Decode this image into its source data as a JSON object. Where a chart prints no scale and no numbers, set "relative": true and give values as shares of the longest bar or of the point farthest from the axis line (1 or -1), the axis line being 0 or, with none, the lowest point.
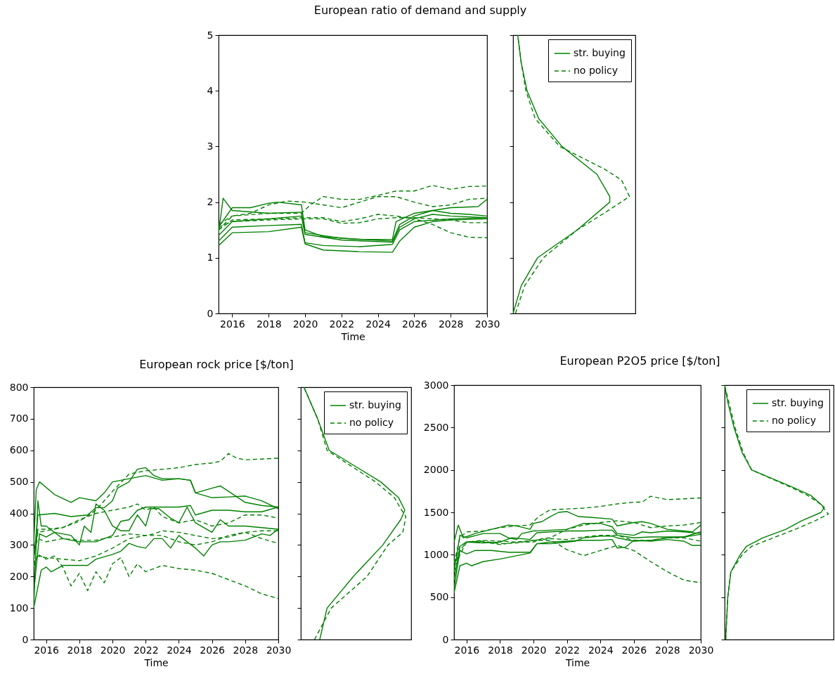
{
  "chart_data": [
    {
      "type": "line",
      "title": "European ratio of demand and supply",
      "xlabel": "Time",
      "xlim": [
        2015.25,
        2030
      ],
      "xticks": [
        2016,
        2018,
        2020,
        2022,
        2024,
        2026,
        2028,
        2030
      ],
      "ylim": [
        0,
        5
      ],
      "yticks": [
        0,
        1,
        2,
        3,
        4,
        5
      ],
      "series": [
        {
          "color": "#008000",
          "line_style": "solid",
          "x": [
            2015.25,
            2016,
            2017,
            2018,
            2018.5,
            2019.8,
            2020,
            2021,
            2023,
            2024.8,
            2025,
            2026,
            2027,
            2028,
            2029.5,
            2030
          ],
          "values": [
            1.55,
            1.9,
            1.9,
            1.98,
            2.0,
            1.95,
            1.5,
            1.38,
            1.33,
            1.33,
            1.65,
            1.8,
            1.85,
            1.9,
            1.92,
            2.05
          ]
        },
        {
          "color": "#008000",
          "line_style": "solid",
          "x": [
            2015.25,
            2015.5,
            2016,
            2018,
            2019.8,
            2020,
            2022,
            2024.8,
            2025.2,
            2026,
            2027,
            2028,
            2029,
            2030
          ],
          "values": [
            1.45,
            2.07,
            1.85,
            1.8,
            1.82,
            1.45,
            1.35,
            1.3,
            1.6,
            1.75,
            1.85,
            1.8,
            1.78,
            1.75
          ]
        },
        {
          "color": "#008000",
          "line_style": "solid",
          "x": [
            2015.25,
            2016,
            2018,
            2019.8,
            2020,
            2022,
            2024.8,
            2025.2,
            2026,
            2027,
            2028,
            2030
          ],
          "values": [
            1.4,
            1.65,
            1.7,
            1.75,
            1.42,
            1.32,
            1.28,
            1.55,
            1.7,
            1.78,
            1.75,
            1.72
          ]
        },
        {
          "color": "#008000",
          "line_style": "solid",
          "x": [
            2015.25,
            2016,
            2018,
            2019.8,
            2020,
            2021,
            2023,
            2024.8,
            2025.2,
            2026,
            2028,
            2030
          ],
          "values": [
            1.3,
            1.55,
            1.58,
            1.6,
            1.27,
            1.22,
            1.2,
            1.24,
            1.5,
            1.65,
            1.7,
            1.72
          ]
        },
        {
          "color": "#008000",
          "line_style": "solid",
          "x": [
            2015.25,
            2016,
            2018,
            2019.8,
            2020,
            2021,
            2023,
            2024.8,
            2025.2,
            2026,
            2027,
            2028,
            2030
          ],
          "values": [
            1.22,
            1.45,
            1.47,
            1.55,
            1.25,
            1.14,
            1.11,
            1.1,
            1.3,
            1.55,
            1.65,
            1.68,
            1.7
          ]
        },
        {
          "color": "#008000",
          "line_style": "dashed",
          "x": [
            2015.25,
            2016,
            2017,
            2018,
            2019,
            2020,
            2021,
            2022,
            2023,
            2024,
            2025,
            2026,
            2027,
            2028,
            2029,
            2030
          ],
          "values": [
            1.5,
            1.75,
            1.8,
            1.95,
            2.02,
            2.0,
            1.95,
            1.9,
            2.0,
            2.1,
            2.1,
            2.0,
            1.92,
            1.95,
            2.05,
            2.07
          ]
        },
        {
          "color": "#008000",
          "line_style": "dashed",
          "x": [
            2015.25,
            2016,
            2018,
            2019.8,
            2020.3,
            2021,
            2022,
            2023,
            2024,
            2025,
            2026,
            2027,
            2028,
            2029,
            2030
          ],
          "values": [
            1.6,
            1.75,
            1.8,
            1.8,
            1.95,
            2.1,
            2.05,
            2.05,
            2.12,
            2.2,
            2.2,
            2.3,
            2.23,
            2.28,
            2.29
          ]
        },
        {
          "color": "#008000",
          "line_style": "dashed",
          "x": [
            2015.25,
            2016,
            2018,
            2020,
            2021,
            2022,
            2023,
            2024,
            2025,
            2026,
            2027,
            2028,
            2029,
            2030
          ],
          "values": [
            1.5,
            1.68,
            1.7,
            1.72,
            1.72,
            1.65,
            1.7,
            1.78,
            1.75,
            1.7,
            1.6,
            1.45,
            1.37,
            1.36
          ]
        },
        {
          "color": "#008000",
          "line_style": "dashed",
          "x": [
            2015.25,
            2016,
            2018,
            2020,
            2021,
            2022,
            2023,
            2024,
            2025,
            2026,
            2027,
            2028,
            2029,
            2030
          ],
          "values": [
            1.55,
            1.65,
            1.68,
            1.7,
            1.7,
            1.62,
            1.63,
            1.7,
            1.72,
            1.72,
            1.7,
            1.68,
            1.63,
            1.63
          ]
        }
      ]
    },
    {
      "type": "line",
      "orientation": "horizontal",
      "relative": true,
      "ylim": [
        0,
        5
      ],
      "yticks": [
        0,
        1,
        2,
        3,
        4,
        5
      ],
      "tick_labels": false,
      "legend": "top right",
      "series": [
        {
          "name": "str. buying",
          "color": "#008000",
          "line_style": "solid",
          "x": [
            0,
            0.5,
            1,
            1.5,
            2,
            2.1,
            2.5,
            3,
            3.5,
            4,
            4.5,
            5
          ],
          "values": [
            0,
            0.07,
            0.21,
            0.55,
            0.83,
            0.83,
            0.72,
            0.42,
            0.22,
            0.12,
            0.07,
            0.04
          ]
        },
        {
          "name": "no policy",
          "color": "#008000",
          "line_style": "dashed",
          "x": [
            0,
            0.5,
            1,
            1.5,
            1.8,
            2.1,
            2.4,
            2.6,
            3,
            3.5,
            4,
            4.5,
            5
          ],
          "values": [
            0.02,
            0.1,
            0.26,
            0.55,
            0.78,
            1,
            0.93,
            0.78,
            0.4,
            0.19,
            0.11,
            0.07,
            0.04
          ]
        }
      ]
    },
    {
      "type": "line",
      "title": "European rock price [$/ton]",
      "xlabel": "Time",
      "xlim": [
        2015.25,
        2030
      ],
      "xticks": [
        2016,
        2018,
        2020,
        2022,
        2024,
        2026,
        2028,
        2030
      ],
      "ylim": [
        0,
        800
      ],
      "yticks": [
        0,
        100,
        200,
        300,
        400,
        500,
        600,
        700,
        800
      ],
      "series": [
        {
          "color": "#008000",
          "line_style": "solid",
          "x": [
            2015.25,
            2015.4,
            2015.6,
            2016.5,
            2017.5,
            2018,
            2019,
            2019.5,
            2020,
            2021,
            2022,
            2023,
            2024,
            2024.7,
            2025,
            2026,
            2026.5,
            2027,
            2028,
            2029,
            2030
          ],
          "values": [
            300,
            475,
            500,
            460,
            435,
            450,
            440,
            465,
            500,
            510,
            520,
            505,
            510,
            505,
            465,
            480,
            487,
            470,
            435,
            425,
            420
          ]
        },
        {
          "color": "#008000",
          "line_style": "solid",
          "x": [
            2015.25,
            2015.5,
            2016.5,
            2017.5,
            2018.5,
            2019,
            2019.5,
            2020,
            2020.3,
            2021,
            2021.5,
            2022,
            2022.5,
            2023,
            2024,
            2024.7,
            2025,
            2026,
            2027,
            2028,
            2029,
            2030
          ],
          "values": [
            250,
            395,
            400,
            390,
            395,
            418,
            418,
            440,
            480,
            500,
            540,
            545,
            520,
            510,
            510,
            505,
            465,
            450,
            452,
            455,
            440,
            415
          ]
        },
        {
          "color": "#008000",
          "line_style": "solid",
          "x": [
            2015.25,
            2015.5,
            2015.7,
            2016,
            2017,
            2018,
            2019,
            2020,
            2020.5,
            2021,
            2021.5,
            2022,
            2023,
            2024,
            2024.7,
            2025,
            2026,
            2027,
            2028,
            2029,
            2030
          ],
          "values": [
            100,
            440,
            360,
            360,
            320,
            310,
            310,
            330,
            375,
            380,
            410,
            420,
            420,
            420,
            425,
            395,
            410,
            410,
            405,
            405,
            420
          ]
        },
        {
          "color": "#008000",
          "line_style": "solid",
          "x": [
            2015.25,
            2015.6,
            2016,
            2016.5,
            2017.5,
            2018,
            2018.3,
            2018.7,
            2019,
            2019.5,
            2020,
            2020.5,
            2021,
            2021.5,
            2022,
            2022.3,
            2022.8,
            2023.5,
            2024,
            2024.5,
            2025,
            2026,
            2026.5,
            2027,
            2028,
            2029,
            2030
          ],
          "values": [
            150,
            335,
            325,
            340,
            330,
            300,
            360,
            340,
            430,
            410,
            360,
            345,
            345,
            395,
            360,
            415,
            415,
            385,
            370,
            420,
            370,
            340,
            380,
            360,
            360,
            355,
            350
          ]
        },
        {
          "color": "#008000",
          "line_style": "solid",
          "x": [
            2015.25,
            2015.7,
            2016,
            2016.3,
            2017,
            2018,
            2018.5,
            2019,
            2020,
            2020.5,
            2021,
            2021.5,
            2022,
            2022.5,
            2023,
            2023.5,
            2024,
            2024.5,
            2025,
            2025.5,
            2026,
            2026.5,
            2027,
            2028,
            2029,
            2029.5,
            2030
          ],
          "values": [
            100,
            220,
            230,
            215,
            235,
            235,
            235,
            255,
            270,
            280,
            305,
            295,
            290,
            320,
            320,
            290,
            330,
            310,
            290,
            265,
            300,
            310,
            310,
            315,
            335,
            330,
            350
          ]
        },
        {
          "color": "#008000",
          "line_style": "dashed",
          "x": [
            2015.25,
            2015.5,
            2016,
            2017,
            2018,
            2019,
            2020,
            2021,
            2022,
            2023,
            2024,
            2025,
            2026,
            2026.5,
            2027,
            2027.5,
            2028,
            2030
          ],
          "values": [
            260,
            340,
            345,
            355,
            375,
            410,
            470,
            525,
            535,
            540,
            545,
            555,
            560,
            565,
            590,
            575,
            570,
            575
          ]
        },
        {
          "color": "#008000",
          "line_style": "dashed",
          "x": [
            2015.25,
            2015.5,
            2016,
            2017,
            2018,
            2019,
            2020,
            2021,
            2022,
            2022.5,
            2023,
            2024,
            2025,
            2026,
            2027,
            2028,
            2029,
            2030
          ],
          "values": [
            280,
            320,
            310,
            320,
            315,
            315,
            325,
            335,
            330,
            335,
            345,
            340,
            330,
            320,
            325,
            340,
            345,
            345
          ]
        },
        {
          "color": "#008000",
          "line_style": "dashed",
          "x": [
            2015.25,
            2015.5,
            2016,
            2017,
            2018,
            2019,
            2020,
            2021,
            2021.5,
            2022,
            2022.5,
            2023,
            2024,
            2025,
            2026,
            2027,
            2028,
            2029,
            2030
          ],
          "values": [
            250,
            350,
            350,
            355,
            380,
            400,
            410,
            420,
            430,
            410,
            420,
            390,
            370,
            380,
            360,
            370,
            395,
            395,
            385
          ]
        },
        {
          "color": "#008000",
          "line_style": "dashed",
          "x": [
            2015.25,
            2015.5,
            2016,
            2017,
            2018,
            2019,
            2020,
            2021,
            2022,
            2023,
            2024,
            2025,
            2026,
            2027,
            2028,
            2029,
            2030
          ],
          "values": [
            240,
            265,
            260,
            255,
            250,
            265,
            290,
            320,
            330,
            330,
            310,
            300,
            310,
            330,
            340,
            320,
            305
          ]
        },
        {
          "color": "#008000",
          "line_style": "dashed",
          "x": [
            2015.25,
            2015.5,
            2016,
            2016.5,
            2017,
            2017.5,
            2018,
            2018.5,
            2019,
            2019.5,
            2020,
            2020.5,
            2021,
            2021.5,
            2022,
            2023,
            2024,
            2025,
            2026,
            2027,
            2028,
            2029,
            2030
          ],
          "values": [
            230,
            270,
            255,
            265,
            230,
            170,
            210,
            155,
            215,
            180,
            240,
            260,
            200,
            240,
            215,
            235,
            225,
            220,
            210,
            190,
            170,
            145,
            130
          ]
        }
      ]
    },
    {
      "type": "line",
      "orientation": "horizontal",
      "relative": true,
      "ylim": [
        0,
        800
      ],
      "yticks": [
        0,
        100,
        200,
        300,
        400,
        500,
        600,
        700,
        800
      ],
      "tick_labels": false,
      "legend": "top right",
      "series": [
        {
          "name": "str. buying",
          "color": "#008000",
          "line_style": "solid",
          "x": [
            0,
            100,
            200,
            300,
            380,
            410,
            450,
            500,
            600,
            700,
            800
          ],
          "values": [
            0.18,
            0.25,
            0.5,
            0.78,
            0.95,
            0.99,
            0.93,
            0.76,
            0.27,
            0.16,
            0.03
          ]
        },
        {
          "name": "no policy",
          "color": "#008000",
          "line_style": "dashed",
          "x": [
            0,
            100,
            200,
            300,
            340,
            390,
            410,
            450,
            500,
            600,
            700,
            800
          ],
          "values": [
            0.13,
            0.29,
            0.63,
            0.83,
            0.97,
            1,
            0.96,
            0.89,
            0.71,
            0.25,
            0.16,
            0.03
          ]
        }
      ]
    },
    {
      "type": "line",
      "title": "European P2O5 price [$/ton]",
      "xlabel": "Time",
      "xlim": [
        2015.25,
        2030
      ],
      "xticks": [
        2016,
        2018,
        2020,
        2022,
        2024,
        2026,
        2028,
        2030
      ],
      "ylim": [
        0,
        3000
      ],
      "yticks": [
        0,
        500,
        1000,
        1500,
        2000,
        2500,
        3000
      ],
      "series": [
        {
          "color": "#008000",
          "line_style": "solid",
          "x": [
            2015.25,
            2015.5,
            2015.8,
            2016.5,
            2017.5,
            2018.5,
            2019,
            2019.8,
            2020,
            2020.5,
            2021,
            2021.5,
            2022,
            2022.7,
            2023.5,
            2024.7,
            2025,
            2026,
            2026.5,
            2027,
            2028,
            2029,
            2029.5,
            2030
          ],
          "values": [
            1150,
            1350,
            1200,
            1250,
            1300,
            1350,
            1340,
            1300,
            1370,
            1390,
            1450,
            1500,
            1510,
            1450,
            1440,
            1420,
            1340,
            1380,
            1390,
            1370,
            1300,
            1280,
            1270,
            1350
          ]
        },
        {
          "color": "#008000",
          "line_style": "solid",
          "x": [
            2015.25,
            2015.6,
            2016,
            2017,
            2018,
            2018.5,
            2019,
            2019.3,
            2020,
            2021,
            2022,
            2023,
            2024,
            2024.7,
            2025,
            2026,
            2026.5,
            2027,
            2028,
            2029,
            2030
          ],
          "values": [
            800,
            1230,
            1200,
            1250,
            1250,
            1200,
            1180,
            1250,
            1280,
            1290,
            1300,
            1370,
            1370,
            1330,
            1250,
            1230,
            1270,
            1260,
            1280,
            1270,
            1250
          ]
        },
        {
          "color": "#008000",
          "line_style": "solid",
          "x": [
            2015.25,
            2015.6,
            2016,
            2017,
            2018,
            2018.7,
            2019.8,
            2020.2,
            2021,
            2022,
            2023,
            2024,
            2024.7,
            2025,
            2026,
            2027,
            2028,
            2029,
            2030
          ],
          "values": [
            700,
            1100,
            1150,
            1140,
            1150,
            1200,
            1180,
            1260,
            1270,
            1280,
            1280,
            1290,
            1290,
            1230,
            1200,
            1210,
            1210,
            1210,
            1270
          ]
        },
        {
          "color": "#008000",
          "line_style": "solid",
          "x": [
            2015.25,
            2015.6,
            2016,
            2016.5,
            2017.5,
            2018.5,
            2019.8,
            2020.2,
            2021,
            2022,
            2023,
            2024,
            2024.7,
            2025,
            2025.5,
            2026,
            2027,
            2028,
            2029,
            2029.5,
            2030
          ],
          "values": [
            600,
            1050,
            1010,
            1050,
            1050,
            1030,
            1030,
            1130,
            1150,
            1160,
            1170,
            1170,
            1180,
            1080,
            1090,
            1170,
            1160,
            1180,
            1160,
            1110,
            1110
          ]
        },
        {
          "color": "#008000",
          "line_style": "solid",
          "x": [
            2015.25,
            2015.6,
            2016,
            2016.3,
            2017,
            2018,
            2019.8,
            2020.2,
            2021,
            2021.5,
            2022,
            2022.5,
            2023,
            2024,
            2024.7,
            2025,
            2026,
            2027,
            2028,
            2029,
            2030
          ],
          "values": [
            550,
            870,
            900,
            870,
            920,
            950,
            1020,
            1130,
            1130,
            1140,
            1150,
            1160,
            1200,
            1220,
            1220,
            1200,
            1160,
            1170,
            1200,
            1210,
            1240
          ]
        },
        {
          "color": "#008000",
          "line_style": "dashed",
          "x": [
            2015.25,
            2015.6,
            2016,
            2017,
            2018,
            2019,
            2019.8,
            2020.3,
            2021,
            2022,
            2023,
            2024,
            2025,
            2026,
            2026.5,
            2027,
            2028,
            2029,
            2030
          ],
          "values": [
            900,
            1200,
            1270,
            1280,
            1320,
            1340,
            1350,
            1450,
            1530,
            1540,
            1550,
            1570,
            1600,
            1620,
            1620,
            1690,
            1650,
            1660,
            1670
          ]
        },
        {
          "color": "#008000",
          "line_style": "dashed",
          "x": [
            2015.25,
            2015.6,
            2016,
            2017,
            2018,
            2019,
            2020,
            2020.5,
            2021,
            2022,
            2023,
            2024,
            2025,
            2026,
            2027,
            2028,
            2029,
            2030
          ],
          "values": [
            800,
            1000,
            1150,
            1170,
            1160,
            1150,
            1150,
            1190,
            1200,
            1300,
            1350,
            1380,
            1400,
            1380,
            1320,
            1340,
            1350,
            1380
          ]
        },
        {
          "color": "#008000",
          "line_style": "dashed",
          "x": [
            2015.25,
            2015.6,
            2016,
            2017,
            2018,
            2019,
            2020,
            2021,
            2021.5,
            2022,
            2023,
            2024,
            2025,
            2026,
            2027,
            2028,
            2029,
            2030
          ],
          "values": [
            900,
            1100,
            1150,
            1150,
            1120,
            1150,
            1170,
            1170,
            1120,
            1060,
            990,
            1050,
            1110,
            1050,
            920,
            800,
            700,
            670
          ]
        },
        {
          "color": "#008000",
          "line_style": "dashed",
          "x": [
            2015.25,
            2015.6,
            2016,
            2017,
            2018,
            2019,
            2020,
            2021,
            2022,
            2023,
            2024,
            2025,
            2026,
            2027,
            2028,
            2029,
            2030
          ],
          "values": [
            850,
            1050,
            1150,
            1160,
            1130,
            1140,
            1170,
            1190,
            1180,
            1210,
            1230,
            1230,
            1170,
            1170,
            1200,
            1200,
            1160
          ]
        }
      ]
    },
    {
      "type": "line",
      "orientation": "horizontal",
      "relative": true,
      "ylim": [
        0,
        3000
      ],
      "yticks": [
        0,
        500,
        1000,
        1500,
        2000,
        2500,
        3000
      ],
      "tick_labels": false,
      "legend": "top right",
      "series": [
        {
          "name": "str. buying",
          "color": "#008000",
          "line_style": "solid",
          "x": [
            0,
            500,
            800,
            1000,
            1100,
            1200,
            1300,
            1400,
            1500,
            1560,
            1700,
            1800,
            2000,
            2200,
            2500,
            2800,
            3000
          ],
          "values": [
            0.01,
            0.03,
            0.06,
            0.15,
            0.21,
            0.37,
            0.59,
            0.74,
            0.93,
            0.96,
            0.83,
            0.65,
            0.26,
            0.17,
            0.09,
            0.03,
            0
          ]
        },
        {
          "name": "no policy",
          "color": "#008000",
          "line_style": "dashed",
          "x": [
            0,
            500,
            800,
            1000,
            1100,
            1200,
            1300,
            1400,
            1480,
            1600,
            1700,
            1800,
            2000,
            2200,
            2500,
            2800,
            3000
          ],
          "values": [
            0.01,
            0.03,
            0.06,
            0.17,
            0.26,
            0.47,
            0.68,
            0.87,
            1,
            0.92,
            0.8,
            0.63,
            0.26,
            0.18,
            0.1,
            0.04,
            0
          ]
        }
      ]
    }
  ]
}
